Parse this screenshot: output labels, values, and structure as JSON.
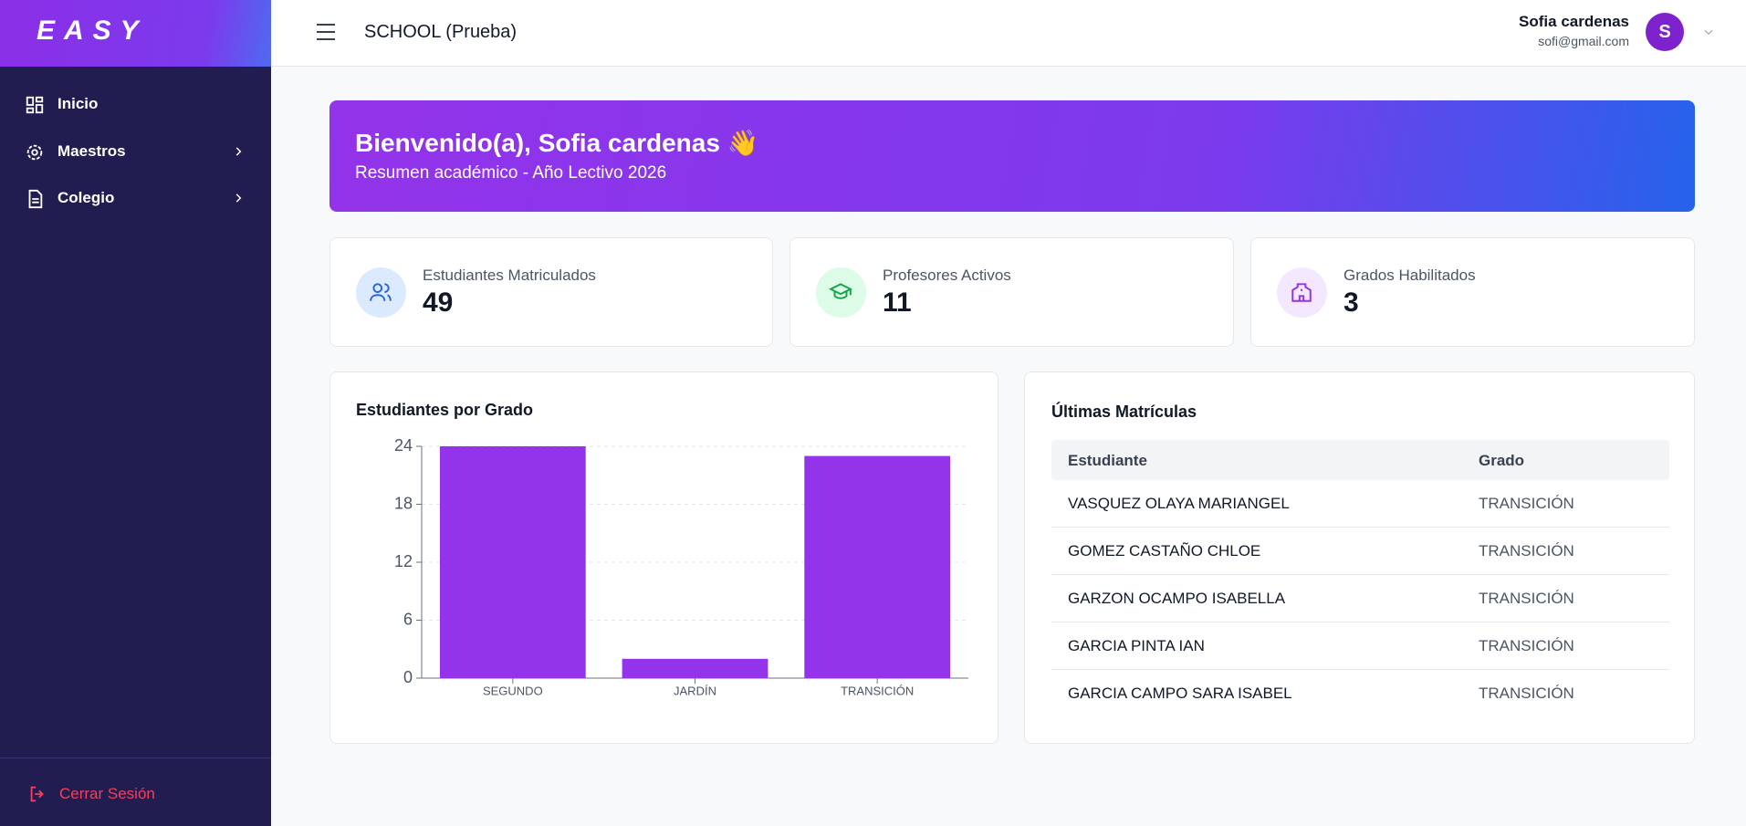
{
  "sidebar": {
    "logo": "EASY",
    "nav": [
      "Inicio",
      "Maestros",
      "Colegio"
    ],
    "logout": "Cerrar Sesión"
  },
  "header": {
    "school": "SCHOOL (Prueba)",
    "user_name": "Sofia cardenas",
    "user_email": "sofi@gmail.com",
    "avatar": "S"
  },
  "banner": {
    "title": "Bienvenido(a), Sofia cardenas 👋",
    "subtitle": "Resumen académico - Año Lectivo 2026"
  },
  "stats": [
    {
      "label": "Estudiantes Matriculados",
      "value": "49"
    },
    {
      "label": "Profesores Activos",
      "value": "11"
    },
    {
      "label": "Grados Habilitados",
      "value": "3"
    }
  ],
  "chart_data": {
    "type": "bar",
    "title": "Estudiantes por Grado",
    "categories": [
      "SEGUNDO",
      "JARDÍN",
      "TRANSICIÓN"
    ],
    "values": [
      24,
      2,
      23
    ],
    "color": "#9333ea",
    "ylim": [
      0,
      24
    ],
    "yticks": [
      0,
      6,
      12,
      18,
      24
    ],
    "grid": true
  },
  "table": {
    "title": "Últimas Matrículas",
    "columns": [
      "Estudiante",
      "Grado"
    ],
    "rows": [
      [
        "VASQUEZ OLAYA MARIANGEL",
        "TRANSICIÓN"
      ],
      [
        "GOMEZ CASTAÑO CHLOE",
        "TRANSICIÓN"
      ],
      [
        "GARZON OCAMPO ISABELLA",
        "TRANSICIÓN"
      ],
      [
        "GARCIA PINTA IAN",
        "TRANSICIÓN"
      ],
      [
        "GARCIA CAMPO SARA ISABEL",
        "TRANSICIÓN"
      ]
    ]
  }
}
